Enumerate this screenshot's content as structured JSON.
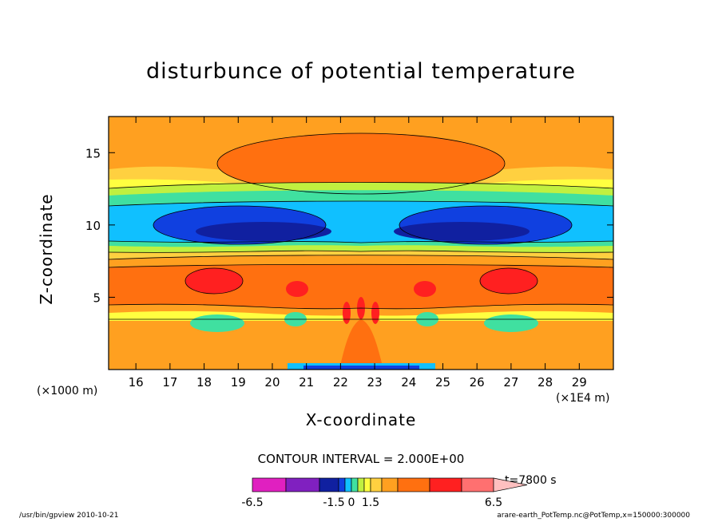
{
  "chart_data": {
    "type": "heatmap",
    "title": "disturbunce of potential temperature",
    "xlabel": "X-coordinate",
    "ylabel": "Z-coordinate",
    "x_unit_left": "(×1000 m)",
    "x_unit_right": "(×1E4 m)",
    "x_ticks": [
      "16",
      "17",
      "18",
      "19",
      "20",
      "21",
      "22",
      "23",
      "24",
      "25",
      "26",
      "27",
      "28",
      "29"
    ],
    "y_ticks": [
      "5",
      "10",
      "15"
    ],
    "xlim": [
      15.2,
      30
    ],
    "ylim": [
      0,
      17.5
    ],
    "contour_interval": "CONTOUR INTERVAL = 2.000E+00",
    "time_label": "t=7800 s",
    "colorbar": {
      "labels": [
        "-6.5",
        "-1.5",
        "0",
        "1.5",
        "6.5"
      ],
      "colors": [
        "#e020c0",
        "#8020c0",
        "#1020a0",
        "#1040e0",
        "#10c0ff",
        "#40e0a0",
        "#c0f040",
        "#ffff40",
        "#ffd040",
        "#ffa020",
        "#ff7010",
        "#ff2020",
        "#ff7070",
        "#ffc0c0"
      ]
    }
  },
  "footer": {
    "left": "/usr/bin/gpview   2010-10-21",
    "right": "arare-earth_PotTemp.nc@PotTemp,x=150000:300000"
  }
}
